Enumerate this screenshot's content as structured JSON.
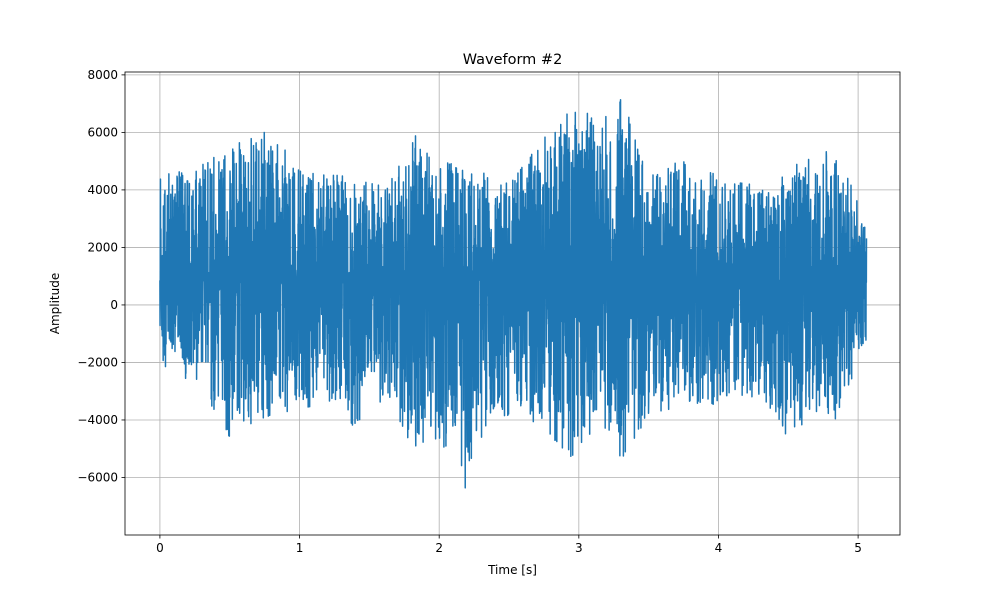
{
  "chart_data": {
    "type": "line",
    "title": "Waveform #2",
    "xlabel": "Time [s]",
    "ylabel": "Amplitude",
    "xlim": [
      -0.25,
      5.3
    ],
    "ylim": [
      -8000,
      8100
    ],
    "x_ticks": [
      0,
      1,
      2,
      3,
      4,
      5
    ],
    "x_tick_labels": [
      "0",
      "1",
      "2",
      "3",
      "4",
      "5"
    ],
    "y_ticks": [
      -6000,
      -4000,
      -2000,
      0,
      2000,
      4000,
      6000,
      8000
    ],
    "y_tick_labels": [
      "−6000",
      "−4000",
      "−2000",
      "0",
      "2000",
      "4000",
      "6000",
      "8000"
    ],
    "grid": true,
    "line_color": "#1f77b4",
    "series": [
      {
        "x_start": 0.0,
        "x_end": 5.06,
        "baseline": 850,
        "envelope": [
          {
            "x": 0.0,
            "max": 4600,
            "min": -2700
          },
          {
            "x": 0.25,
            "max": 4700,
            "min": -2600
          },
          {
            "x": 0.5,
            "max": 5500,
            "min": -4600
          },
          {
            "x": 0.75,
            "max": 6000,
            "min": -3900
          },
          {
            "x": 1.0,
            "max": 5200,
            "min": -3600
          },
          {
            "x": 1.25,
            "max": 4600,
            "min": -3400
          },
          {
            "x": 1.4,
            "max": 4300,
            "min": -4300
          },
          {
            "x": 1.6,
            "max": 4300,
            "min": -3300
          },
          {
            "x": 1.82,
            "max": 6000,
            "min": -5000
          },
          {
            "x": 2.0,
            "max": 4700,
            "min": -4700
          },
          {
            "x": 2.18,
            "max": 5400,
            "min": -7200
          },
          {
            "x": 2.35,
            "max": 4400,
            "min": -3900
          },
          {
            "x": 2.5,
            "max": 4300,
            "min": -4000
          },
          {
            "x": 2.75,
            "max": 5800,
            "min": -4200
          },
          {
            "x": 3.0,
            "max": 7200,
            "min": -5800
          },
          {
            "x": 3.15,
            "max": 6200,
            "min": -4200
          },
          {
            "x": 3.3,
            "max": 7400,
            "min": -5700
          },
          {
            "x": 3.5,
            "max": 4700,
            "min": -3900
          },
          {
            "x": 3.75,
            "max": 5000,
            "min": -3600
          },
          {
            "x": 4.0,
            "max": 4500,
            "min": -3500
          },
          {
            "x": 4.25,
            "max": 4200,
            "min": -3300
          },
          {
            "x": 4.5,
            "max": 4500,
            "min": -4600
          },
          {
            "x": 4.7,
            "max": 5800,
            "min": -3700
          },
          {
            "x": 4.85,
            "max": 5200,
            "min": -4100
          },
          {
            "x": 5.06,
            "max": 3000,
            "min": -1200
          }
        ]
      }
    ]
  }
}
